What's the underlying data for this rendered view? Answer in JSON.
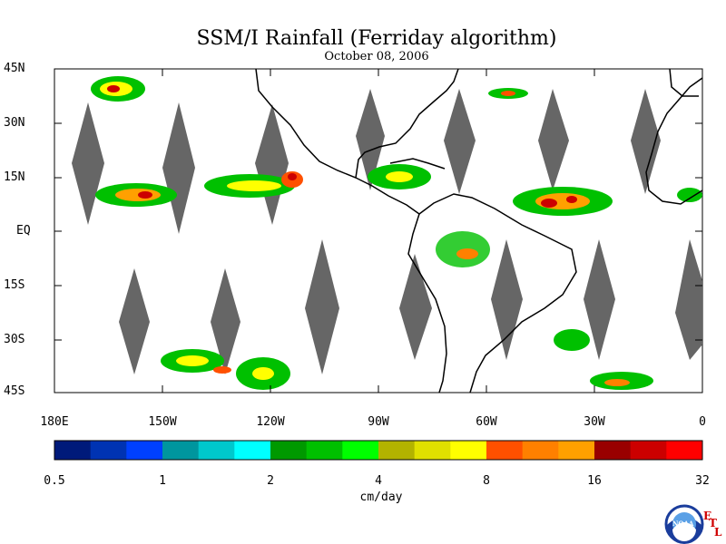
{
  "title": "SSM/I Rainfall (Ferriday algorithm)",
  "date": "October 08, 2006",
  "lat_labels": [
    "45N",
    "30N",
    "15N",
    "EQ",
    "15S",
    "30S",
    "45S"
  ],
  "lon_labels": [
    "180E",
    "150W",
    "120W",
    "90W",
    "60W",
    "30W",
    "0"
  ],
  "colorbar": {
    "colors": [
      "#001a7a",
      "#0033b3",
      "#0040ff",
      "#00969e",
      "#00c8cc",
      "#00ffff",
      "#009900",
      "#00c000",
      "#00ff00",
      "#b3b300",
      "#e0e000",
      "#ffff00",
      "#ff5000",
      "#ff8000",
      "#ffa000",
      "#990000",
      "#cc0000",
      "#ff0000"
    ],
    "tick_labels": [
      "0.5",
      "1",
      "2",
      "4",
      "8",
      "16",
      "32"
    ]
  },
  "units": "cm/day",
  "logo": {
    "text": "NOAA",
    "lab": [
      "E",
      "T",
      "L"
    ]
  },
  "colors": {
    "land_outline": "#000000",
    "no_data_swath": "#666666"
  }
}
